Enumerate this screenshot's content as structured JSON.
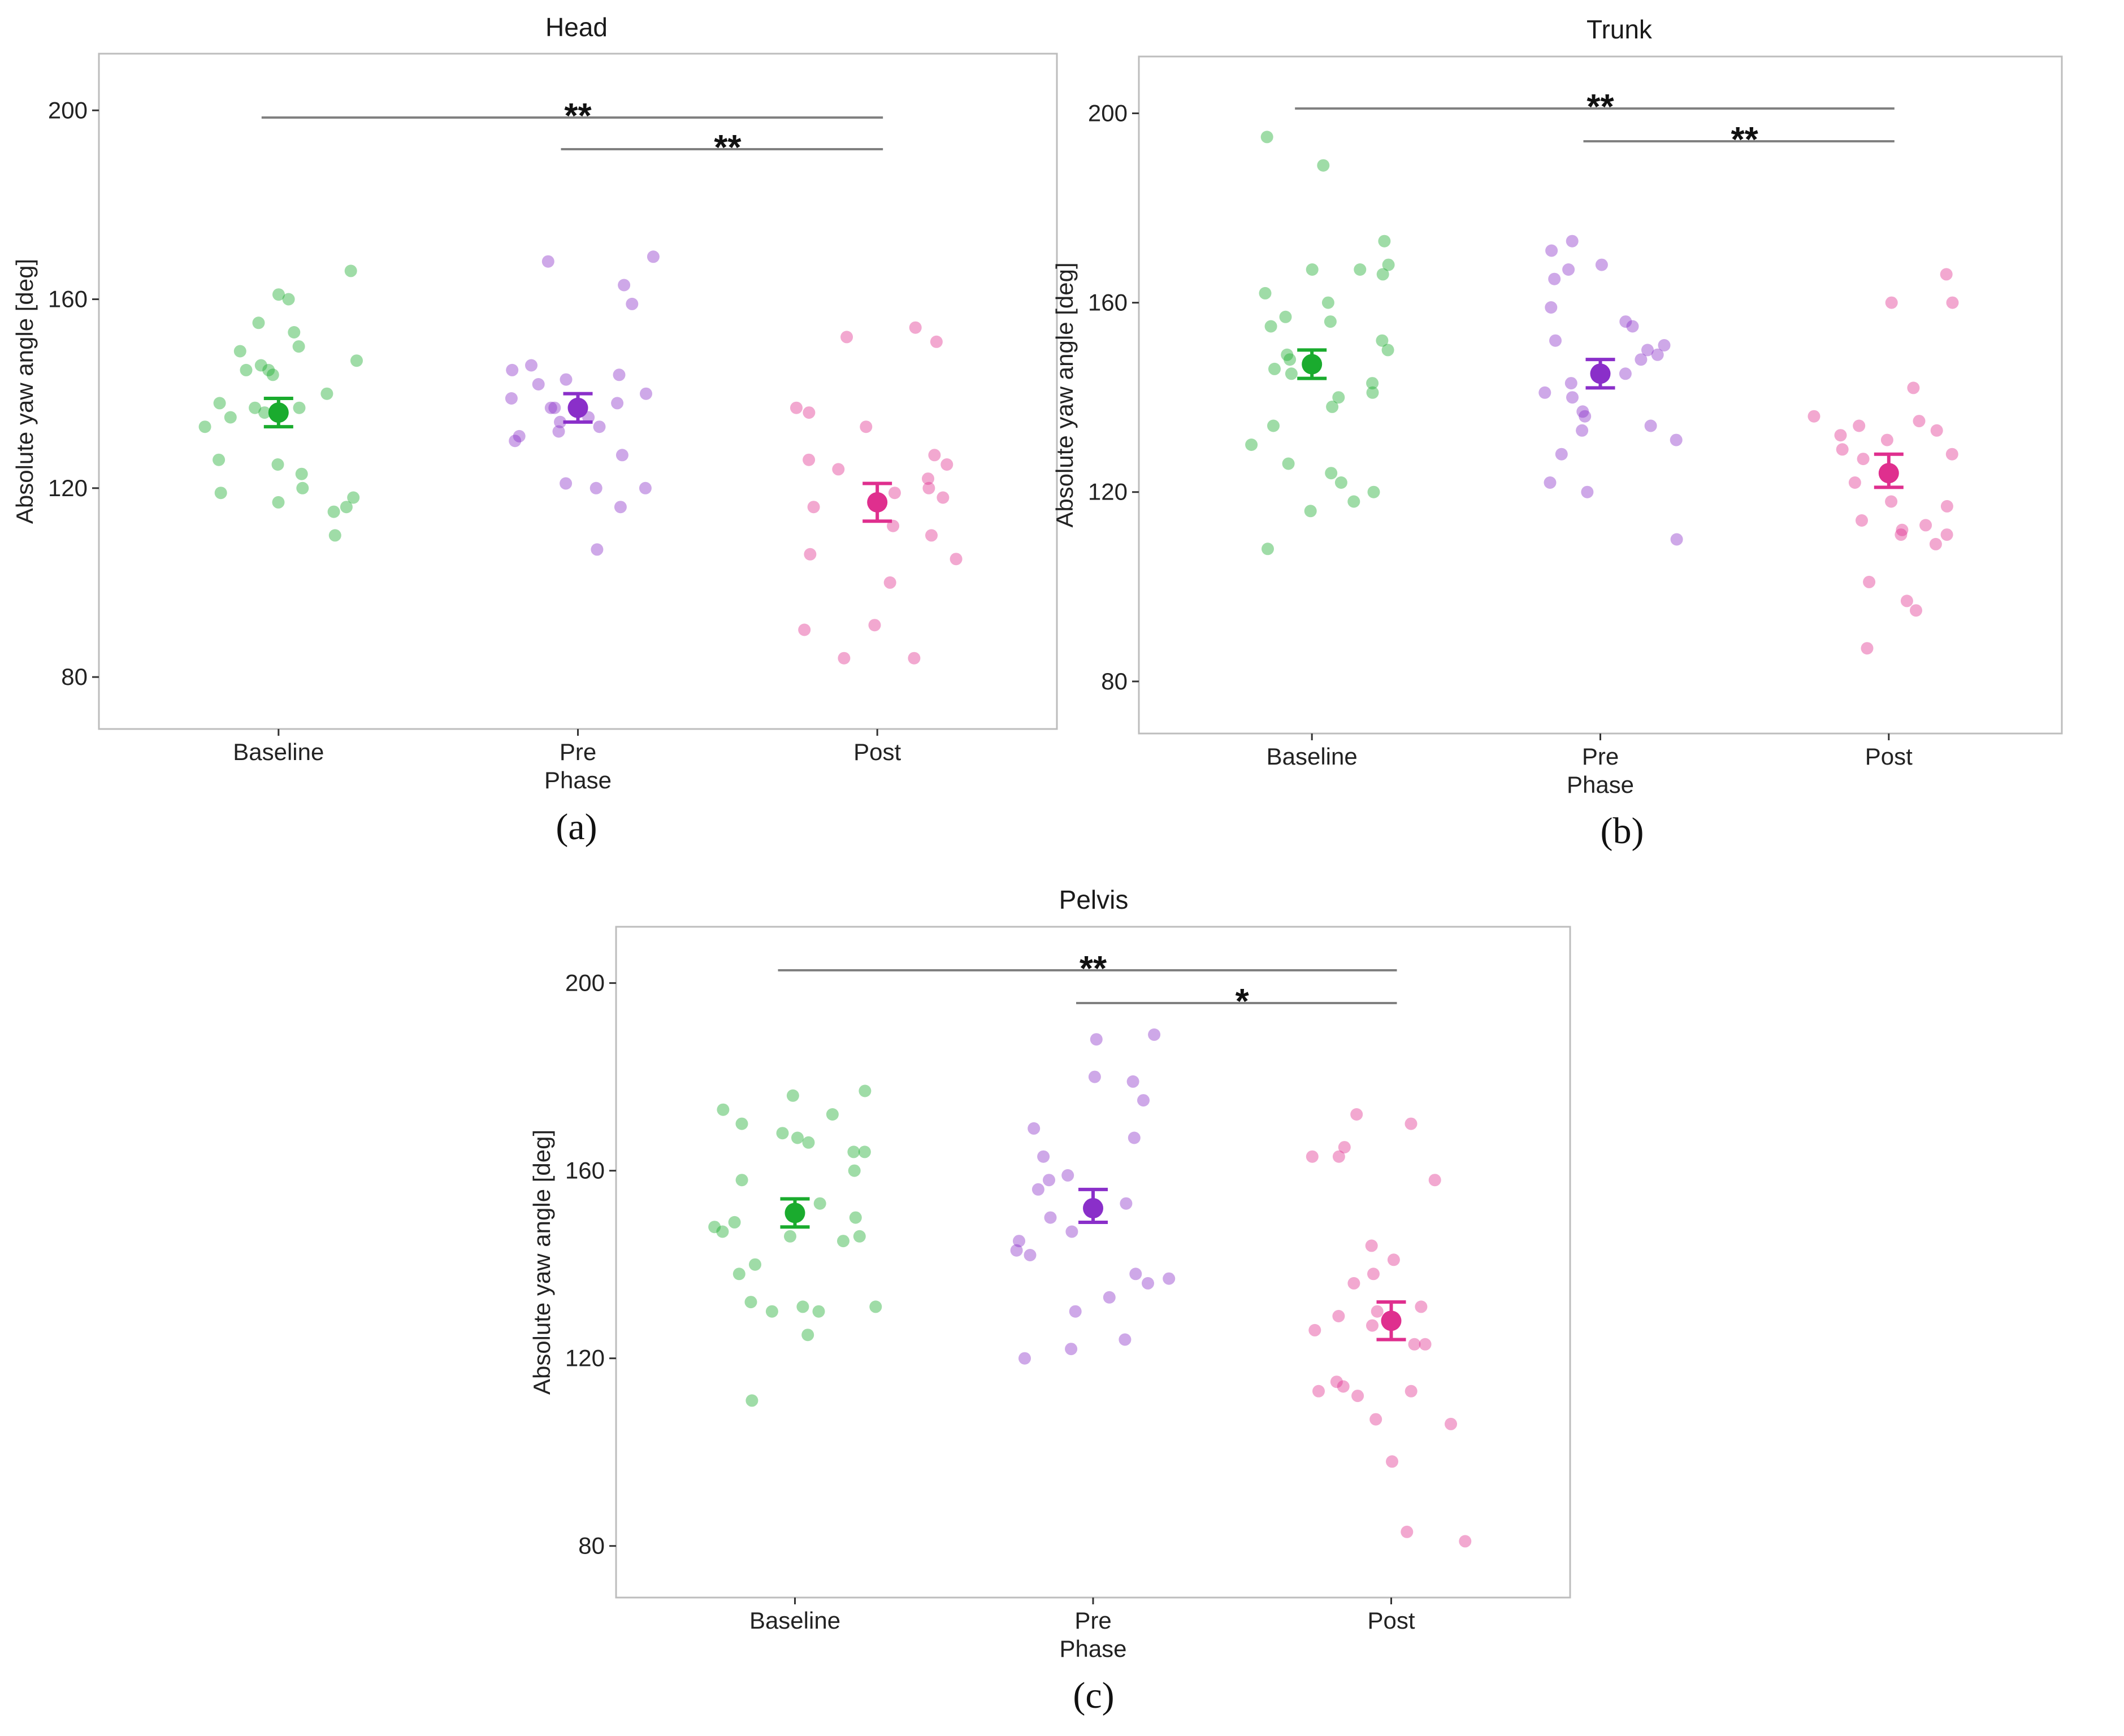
{
  "colors": {
    "Baseline": "#1aab2e",
    "Pre": "#8a2fc9",
    "Post": "#df2f8e",
    "panel_border": "#bdbdbd",
    "bracket": "#808080"
  },
  "chart_data": [
    {
      "type": "scatter",
      "title": "Head",
      "caption": "(a)",
      "xlabel": "Phase",
      "ylabel": "Absolute yaw angle [deg]",
      "categories": [
        "Baseline",
        "Pre",
        "Post"
      ],
      "ylim": [
        69,
        212
      ],
      "yticks": [
        80,
        120,
        160,
        200
      ],
      "series": [
        {
          "name": "Baseline",
          "mean": 136,
          "err_low": 133,
          "err_high": 139,
          "points": [
            166,
            161,
            160,
            155,
            153,
            150,
            149,
            147,
            146,
            145,
            145,
            144,
            140,
            138,
            137,
            137,
            136,
            135,
            133,
            126,
            125,
            123,
            120,
            119,
            118,
            117,
            116,
            115,
            110
          ]
        },
        {
          "name": "Pre",
          "mean": 137,
          "err_low": 134,
          "err_high": 140,
          "points": [
            169,
            168,
            163,
            159,
            146,
            145,
            144,
            143,
            142,
            140,
            139,
            138,
            137,
            137,
            135,
            134,
            133,
            132,
            131,
            130,
            127,
            121,
            120,
            120,
            116,
            107
          ]
        },
        {
          "name": "Post",
          "mean": 117,
          "err_low": 113,
          "err_high": 121,
          "points": [
            154,
            152,
            151,
            137,
            136,
            133,
            127,
            126,
            125,
            124,
            122,
            120,
            119,
            118,
            116,
            112,
            110,
            106,
            105,
            100,
            91,
            90,
            84,
            84
          ]
        }
      ],
      "significance": [
        {
          "from": "Baseline",
          "to": "Post",
          "label": "**"
        },
        {
          "from": "Pre",
          "to": "Post",
          "label": "**"
        }
      ]
    },
    {
      "type": "scatter",
      "title": "Trunk",
      "caption": "(b)",
      "xlabel": "Phase",
      "ylabel": "Absolute yaw angle [deg]",
      "categories": [
        "Baseline",
        "Pre",
        "Post"
      ],
      "ylim": [
        69,
        212
      ],
      "yticks": [
        80,
        120,
        160,
        200
      ],
      "series": [
        {
          "name": "Baseline",
          "mean": 147,
          "err_low": 144,
          "err_high": 150,
          "points": [
            195,
            189,
            173,
            168,
            167,
            167,
            166,
            162,
            160,
            157,
            156,
            155,
            152,
            150,
            149,
            148,
            146,
            145,
            143,
            141,
            140,
            138,
            134,
            130,
            126,
            124,
            122,
            120,
            118,
            116,
            108
          ]
        },
        {
          "name": "Pre",
          "mean": 145,
          "err_low": 142,
          "err_high": 148,
          "points": [
            173,
            171,
            168,
            167,
            165,
            159,
            156,
            155,
            152,
            151,
            150,
            149,
            148,
            145,
            143,
            141,
            140,
            137,
            136,
            134,
            133,
            131,
            128,
            122,
            120,
            110
          ]
        },
        {
          "name": "Post",
          "mean": 124,
          "err_low": 121,
          "err_high": 128,
          "points": [
            166,
            160,
            160,
            142,
            136,
            135,
            134,
            133,
            132,
            131,
            129,
            128,
            127,
            122,
            118,
            117,
            114,
            113,
            112,
            111,
            111,
            109,
            101,
            97,
            95,
            87
          ]
        }
      ],
      "significance": [
        {
          "from": "Baseline",
          "to": "Post",
          "label": "**"
        },
        {
          "from": "Pre",
          "to": "Post",
          "label": "**"
        }
      ]
    },
    {
      "type": "scatter",
      "title": "Pelvis",
      "caption": "(c)",
      "xlabel": "Phase",
      "ylabel": "Absolute yaw angle [deg]",
      "categories": [
        "Baseline",
        "Pre",
        "Post"
      ],
      "ylim": [
        69,
        212
      ],
      "yticks": [
        80,
        120,
        160,
        200
      ],
      "series": [
        {
          "name": "Baseline",
          "mean": 151,
          "err_low": 148,
          "err_high": 154,
          "points": [
            177,
            176,
            173,
            172,
            170,
            168,
            167,
            166,
            164,
            164,
            160,
            158,
            153,
            150,
            149,
            148,
            147,
            146,
            146,
            145,
            140,
            138,
            132,
            131,
            131,
            130,
            130,
            125,
            111
          ]
        },
        {
          "name": "Pre",
          "mean": 152,
          "err_low": 149,
          "err_high": 156,
          "points": [
            189,
            188,
            180,
            179,
            175,
            169,
            167,
            163,
            159,
            158,
            156,
            153,
            150,
            147,
            145,
            143,
            142,
            138,
            137,
            136,
            133,
            130,
            124,
            122,
            120
          ]
        },
        {
          "name": "Post",
          "mean": 128,
          "err_low": 124,
          "err_high": 132,
          "points": [
            172,
            170,
            165,
            163,
            163,
            158,
            144,
            141,
            138,
            136,
            131,
            130,
            129,
            127,
            126,
            123,
            123,
            115,
            114,
            113,
            113,
            112,
            107,
            106,
            98,
            83,
            81
          ]
        }
      ],
      "significance": [
        {
          "from": "Baseline",
          "to": "Post",
          "label": "**"
        },
        {
          "from": "Pre",
          "to": "Post",
          "label": "*"
        }
      ]
    }
  ]
}
